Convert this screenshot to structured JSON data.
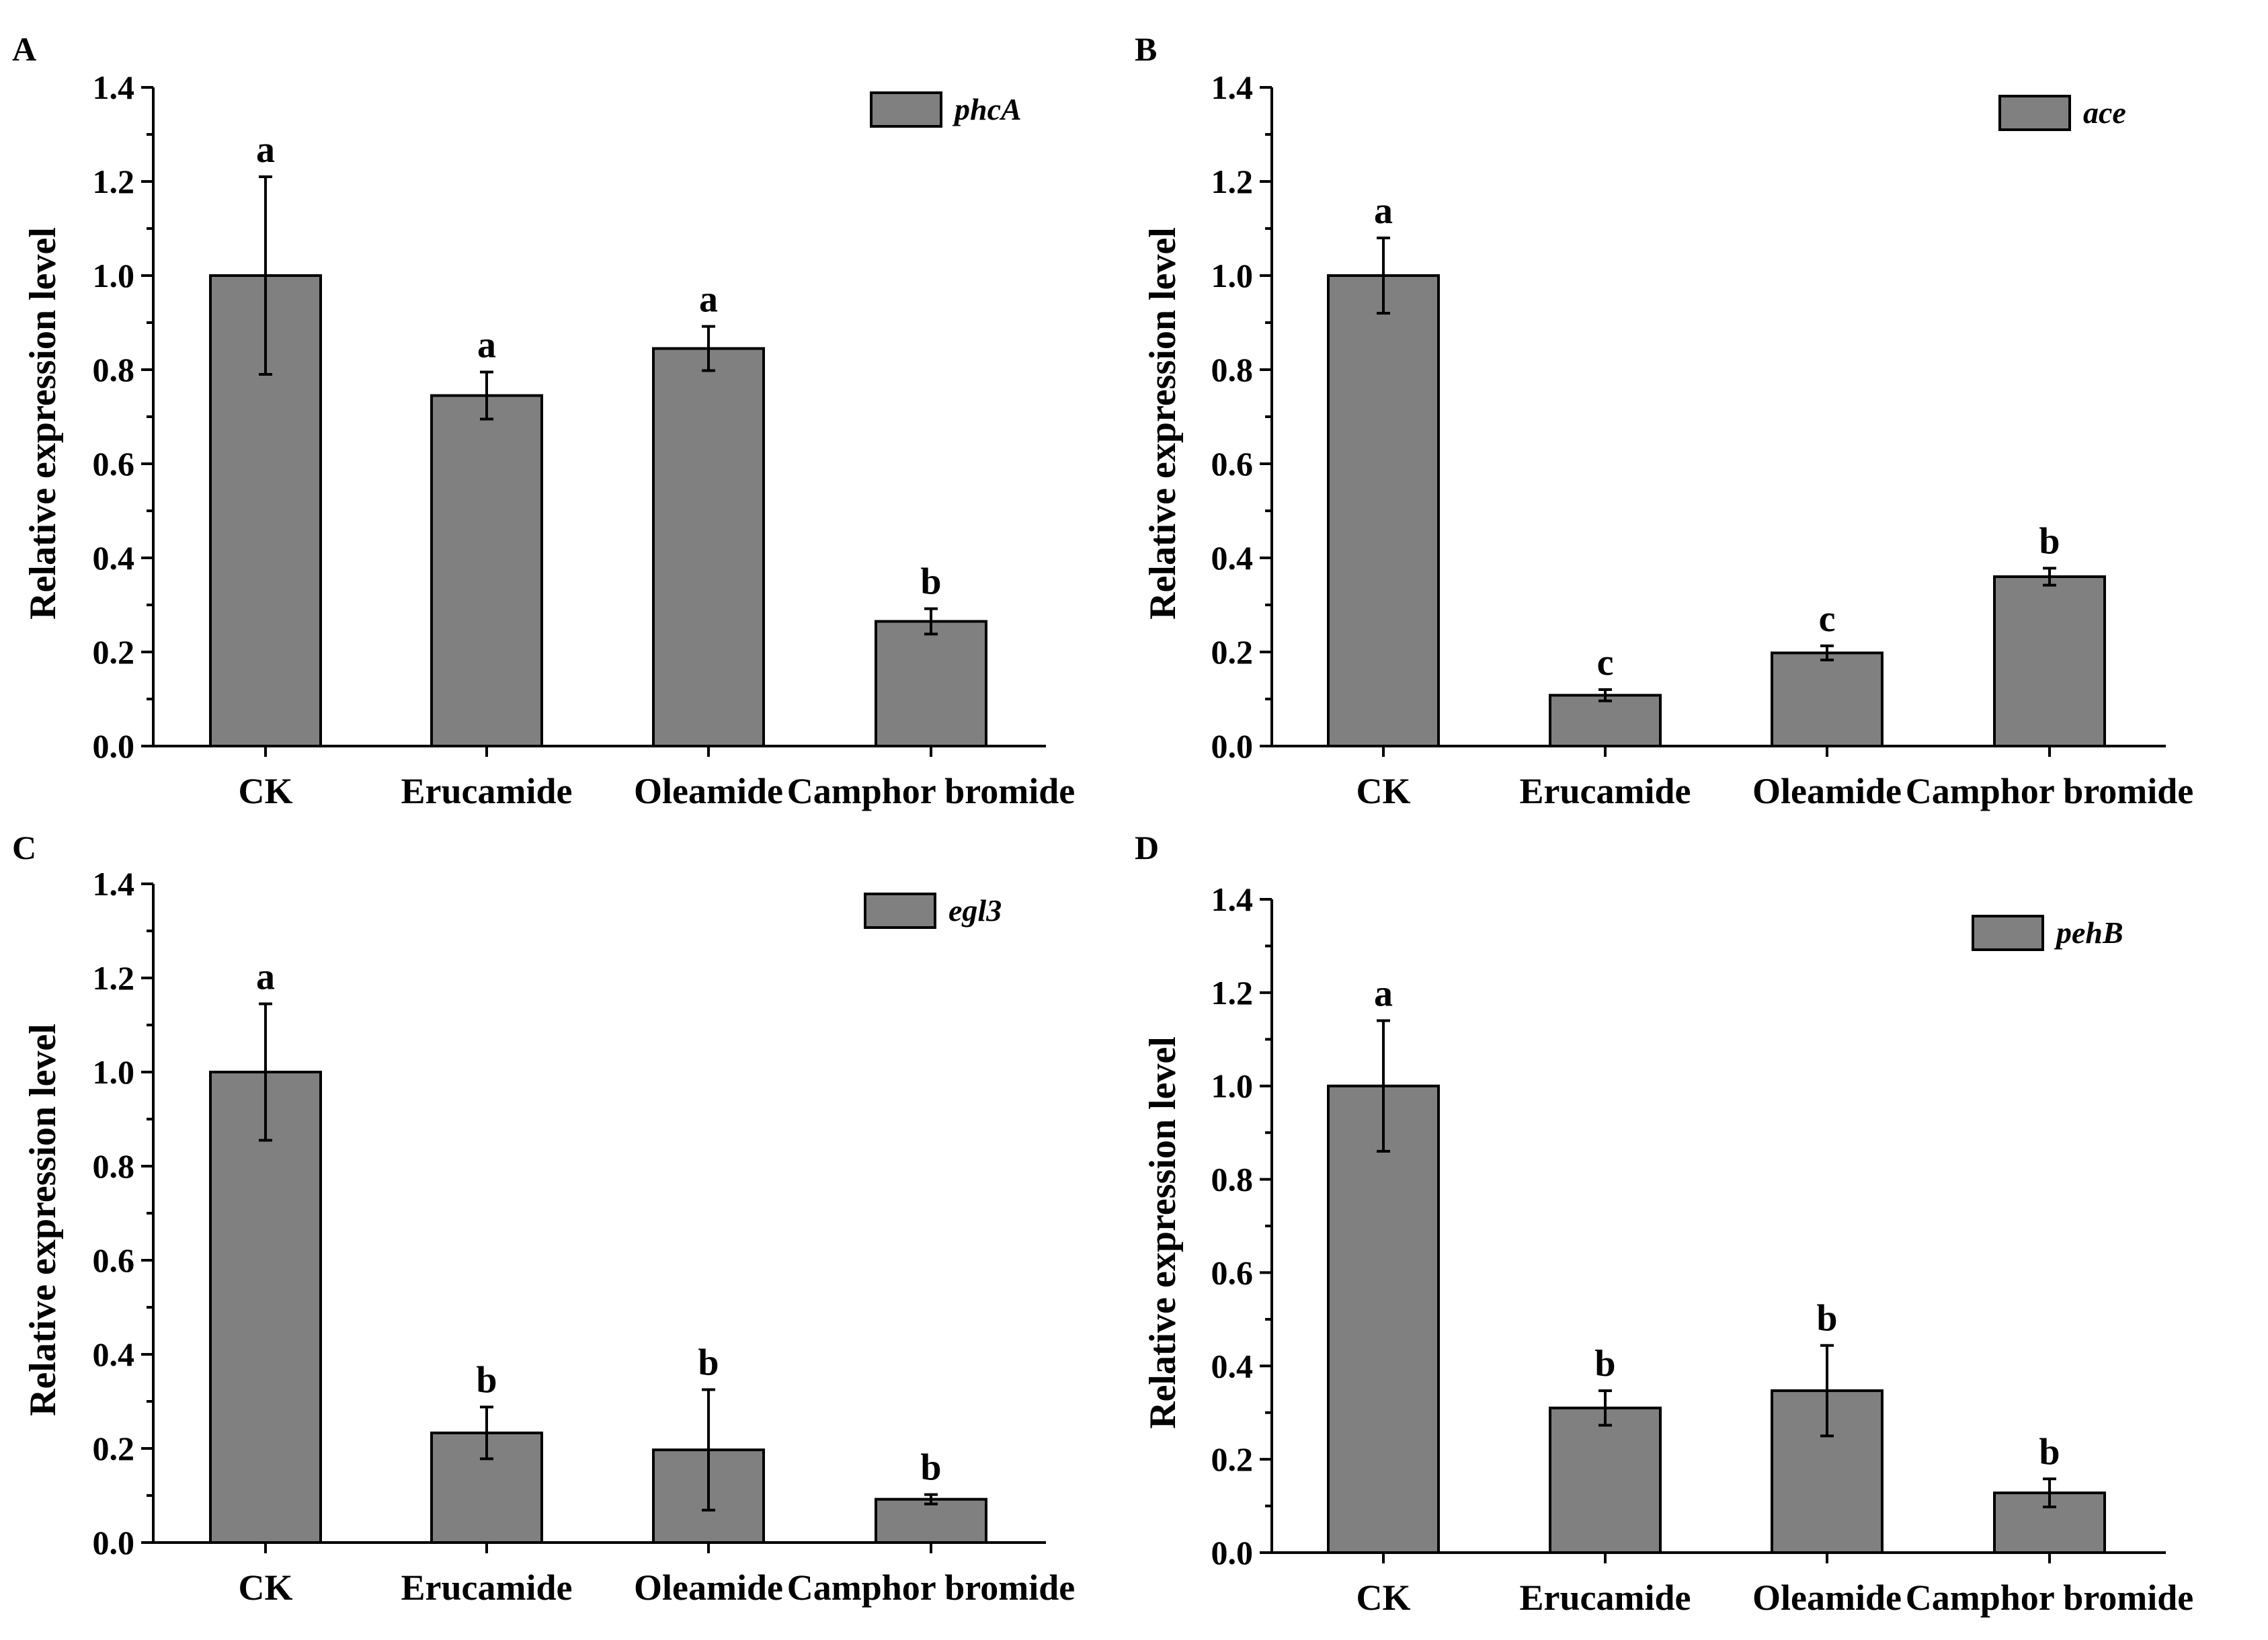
{
  "chart_data": [
    {
      "type": "bar",
      "panel": "A",
      "ylabel": "Relative expression level",
      "ylim": [
        0,
        1.4
      ],
      "yticks": [
        "0.0",
        "0.2",
        "0.4",
        "0.6",
        "0.8",
        "1.0",
        "1.2",
        "1.4"
      ],
      "categories": [
        "CK",
        "Erucamide",
        "Oleamide",
        "Camphor bromide"
      ],
      "series": [
        {
          "name": "phcA",
          "values": [
            1.0,
            0.745,
            0.845,
            0.265
          ],
          "errors": [
            0.21,
            0.05,
            0.047,
            0.027
          ]
        }
      ],
      "significance": [
        "a",
        "a",
        "a",
        "b"
      ],
      "legend": "top-right"
    },
    {
      "type": "bar",
      "panel": "B",
      "ylabel": "Relative expression level",
      "ylim": [
        0,
        1.4
      ],
      "yticks": [
        "0.0",
        "0.2",
        "0.4",
        "0.6",
        "0.8",
        "1.0",
        "1.2",
        "1.4"
      ],
      "categories": [
        "CK",
        "Erucamide",
        "Oleamide",
        "Camphor bromide"
      ],
      "series": [
        {
          "name": "ace",
          "values": [
            1.0,
            0.108,
            0.198,
            0.36
          ],
          "errors": [
            0.08,
            0.012,
            0.015,
            0.018
          ]
        }
      ],
      "significance": [
        "a",
        "c",
        "c",
        "b"
      ],
      "legend": "top-right"
    },
    {
      "type": "bar",
      "panel": "C",
      "ylabel": "Relative expression level",
      "ylim": [
        0,
        1.4
      ],
      "yticks": [
        "0.0",
        "0.2",
        "0.4",
        "0.6",
        "0.8",
        "1.0",
        "1.2",
        "1.4"
      ],
      "categories": [
        "CK",
        "Erucamide",
        "Oleamide",
        "Camphor bromide"
      ],
      "series": [
        {
          "name": "egl3",
          "values": [
            1.0,
            0.233,
            0.197,
            0.092
          ],
          "errors": [
            0.145,
            0.055,
            0.128,
            0.01
          ]
        }
      ],
      "significance": [
        "a",
        "b",
        "b",
        "b"
      ],
      "legend": "top-right"
    },
    {
      "type": "bar",
      "panel": "D",
      "ylabel": "Relative expression level",
      "ylim": [
        0,
        1.4
      ],
      "yticks": [
        "0.0",
        "0.2",
        "0.4",
        "0.6",
        "0.8",
        "1.0",
        "1.2",
        "1.4"
      ],
      "categories": [
        "CK",
        "Erucamide",
        "Oleamide",
        "Camphor bromide"
      ],
      "series": [
        {
          "name": "pehB",
          "values": [
            1.0,
            0.31,
            0.347,
            0.128
          ],
          "errors": [
            0.14,
            0.037,
            0.097,
            0.03
          ]
        }
      ],
      "significance": [
        "a",
        "b",
        "b",
        "b"
      ],
      "legend": "top-right"
    }
  ]
}
